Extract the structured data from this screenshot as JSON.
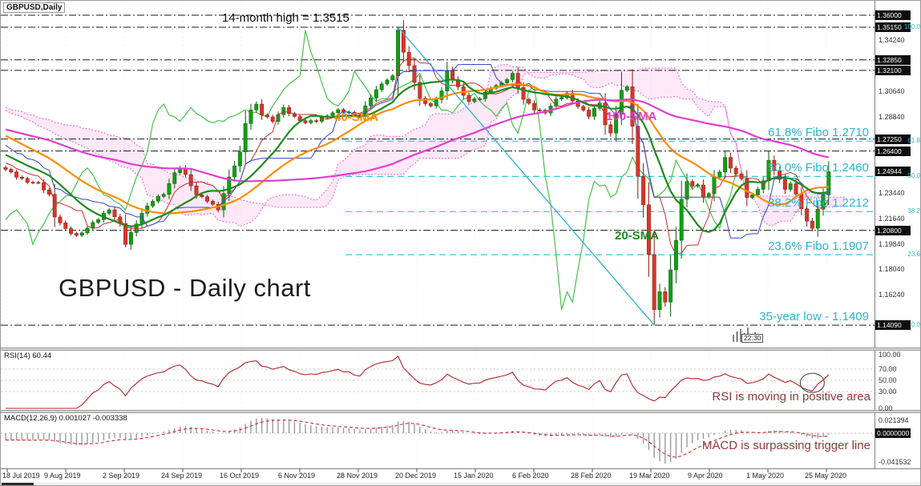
{
  "window": {
    "symbol_label": "GBPUSD,Daily"
  },
  "chart_data": [
    {
      "panel": "price",
      "type": "candlestick",
      "symbol": "GBPUSD",
      "timeframe": "Daily",
      "x_tick_labels": [
        "18 Jul 2019",
        "9 Aug 2019",
        "2 Sep 2019",
        "24 Sep 2019",
        "16 Oct 2019",
        "6 Nov 2019",
        "28 Nov 2019",
        "20 Dec 2019",
        "15 Jan 2020",
        "6 Feb 2020",
        "28 Feb 2020",
        "19 Mar 2020",
        "9 Apr 2020",
        "1 May 2020",
        "25 May 2020"
      ],
      "y_axis": {
        "plain_ticks": [
          "1.34240",
          "1.30640",
          "1.28840",
          "1.23440",
          "1.21640",
          "1.19840",
          "1.18040",
          "1.16240"
        ],
        "badge_ticks": [
          "1.36000",
          "1.35150",
          "1.32850",
          "1.32100",
          "1.27250",
          "1.26400",
          "1.24944",
          "1.20800",
          "1.14090"
        ],
        "current_price": "1.24944"
      },
      "levels_dash_dot": [
        1.36,
        1.3515,
        1.3285,
        1.321,
        1.2725,
        1.264,
        1.208,
        1.1409
      ],
      "fibo_levels": [
        {
          "pct_label": "100.0",
          "price": 1.3515
        },
        {
          "pct_label": "61.8",
          "price": 1.271,
          "line_label": "61.8% Fibo 1.2710"
        },
        {
          "pct_label": "50.0",
          "price": 1.246,
          "line_label": "50.0% Fibo 1.2460"
        },
        {
          "pct_label": "38.2",
          "price": 1.2212,
          "line_label": "38.2% Fibo 1.2212"
        },
        {
          "pct_label": "23.6",
          "price": 1.1907,
          "line_label": "23.6% Fibo 1.1907"
        },
        {
          "pct_label": "0.0",
          "price": 1.1409
        }
      ],
      "overlays": [
        {
          "label": "20-SMA",
          "color": "#1d8a1d",
          "window": 13
        },
        {
          "label": "40-SMA",
          "color": "#ff8c00",
          "window": 26
        },
        {
          "label": "100-SMA",
          "color": "#e23ed0",
          "window": 65
        }
      ],
      "ichimoku": {
        "cloud_color": "#ef5fd0",
        "chikou_color": "#46c24a",
        "tenkan_color": "#c62f2f",
        "kijun_color": "#3246c8"
      },
      "annotations": {
        "high_label": "14-month high = 1.3515",
        "low_label": "35-year low - 1.1409",
        "big_title": "GBPUSD - Daily chart",
        "time_tag": "22:30"
      },
      "trendline": {
        "from_index": 72,
        "from_price": 1.3515,
        "to_index": 119,
        "to_price": 1.1409
      },
      "bar_count": 152,
      "warmup_close_keypoints": [
        [
          -30,
          1.305
        ],
        [
          -22,
          1.295
        ],
        [
          -14,
          1.278
        ],
        [
          -7,
          1.262
        ],
        [
          -1,
          1.253
        ]
      ],
      "close_keypoints": [
        [
          0,
          1.251
        ],
        [
          2,
          1.246
        ],
        [
          4,
          1.2425
        ],
        [
          6,
          1.241
        ],
        [
          8,
          1.233
        ],
        [
          9,
          1.218
        ],
        [
          11,
          1.2085
        ],
        [
          13,
          1.204
        ],
        [
          15,
          1.2095
        ],
        [
          17,
          1.216
        ],
        [
          19,
          1.223
        ],
        [
          21,
          1.212
        ],
        [
          22,
          1.1985
        ],
        [
          23,
          1.206
        ],
        [
          25,
          1.22
        ],
        [
          27,
          1.229
        ],
        [
          29,
          1.234
        ],
        [
          31,
          1.248
        ],
        [
          32,
          1.2525
        ],
        [
          33,
          1.247
        ],
        [
          35,
          1.233
        ],
        [
          37,
          1.229
        ],
        [
          39,
          1.223
        ],
        [
          41,
          1.245
        ],
        [
          43,
          1.263
        ],
        [
          44,
          1.284
        ],
        [
          45,
          1.293
        ],
        [
          46,
          1.2965
        ],
        [
          47,
          1.29
        ],
        [
          49,
          1.2855
        ],
        [
          51,
          1.294
        ],
        [
          53,
          1.288
        ],
        [
          55,
          1.284
        ],
        [
          57,
          1.2855
        ],
        [
          59,
          1.2895
        ],
        [
          61,
          1.2925
        ],
        [
          63,
          1.291
        ],
        [
          65,
          1.2885
        ],
        [
          67,
          1.302
        ],
        [
          69,
          1.312
        ],
        [
          71,
          1.3165
        ],
        [
          72,
          1.35
        ],
        [
          73,
          1.3335
        ],
        [
          74,
          1.325
        ],
        [
          75,
          1.3125
        ],
        [
          76,
          1.3005
        ],
        [
          78,
          1.2955
        ],
        [
          80,
          1.3065
        ],
        [
          81,
          1.32
        ],
        [
          82,
          1.315
        ],
        [
          83,
          1.309
        ],
        [
          85,
          1.299
        ],
        [
          87,
          1.3015
        ],
        [
          89,
          1.309
        ],
        [
          91,
          1.3115
        ],
        [
          93,
          1.3185
        ],
        [
          95,
          1.3005
        ],
        [
          97,
          1.2935
        ],
        [
          99,
          1.2915
        ],
        [
          101,
          1.3
        ],
        [
          103,
          1.3045
        ],
        [
          105,
          1.2955
        ],
        [
          107,
          1.289
        ],
        [
          109,
          1.2985
        ],
        [
          110,
          1.2825
        ],
        [
          111,
          1.276
        ],
        [
          112,
          1.2905
        ],
        [
          113,
          1.3065
        ],
        [
          114,
          1.31
        ],
        [
          115,
          1.2815
        ],
        [
          116,
          1.2455
        ],
        [
          117,
          1.2265
        ],
        [
          118,
          1.1905
        ],
        [
          119,
          1.1525
        ],
        [
          120,
          1.1645
        ],
        [
          121,
          1.1565
        ],
        [
          122,
          1.1805
        ],
        [
          123,
          1.2005
        ],
        [
          124,
          1.2305
        ],
        [
          125,
          1.2425
        ],
        [
          126,
          1.2385
        ],
        [
          127,
          1.2405
        ],
        [
          128,
          1.231
        ],
        [
          129,
          1.2345
        ],
        [
          130,
          1.2455
        ],
        [
          131,
          1.2485
        ],
        [
          132,
          1.26
        ],
        [
          133,
          1.2515
        ],
        [
          134,
          1.2485
        ],
        [
          135,
          1.2445
        ],
        [
          136,
          1.2305
        ],
        [
          137,
          1.2335
        ],
        [
          138,
          1.2365
        ],
        [
          139,
          1.2435
        ],
        [
          140,
          1.2575
        ],
        [
          141,
          1.2495
        ],
        [
          142,
          1.2445
        ],
        [
          143,
          1.2365
        ],
        [
          144,
          1.2415
        ],
        [
          145,
          1.2335
        ],
        [
          146,
          1.2225
        ],
        [
          147,
          1.215
        ],
        [
          148,
          1.209
        ],
        [
          149,
          1.2235
        ],
        [
          150,
          1.233
        ],
        [
          151,
          1.2494
        ]
      ],
      "wick_overrides": [
        [
          22,
          "low",
          1.1959
        ],
        [
          72,
          "high",
          1.3515
        ],
        [
          93,
          "high",
          1.3205
        ],
        [
          113,
          "high",
          1.32
        ],
        [
          119,
          "low",
          1.1409
        ]
      ]
    },
    {
      "panel": "rsi",
      "type": "line",
      "label": "RSI(14) 60.44",
      "indicator": "RSI",
      "period": 14,
      "current_value": 60.44,
      "axis_labels": [
        "100.00",
        "70.00",
        "50.00",
        "30.00",
        "0.00"
      ],
      "axis_values": [
        100,
        70,
        50,
        30,
        0
      ],
      "level_lines": [
        70,
        50,
        30
      ],
      "line_color": "#b22222",
      "note": "RSI is moving in positive area"
    },
    {
      "panel": "macd",
      "type": "bar",
      "label": "MACD(12,26,9) 0.001027 -0.003338",
      "indicator": "MACD",
      "params": "12,26,9",
      "macd_value": "0.001027",
      "signal_value": "-0.003338",
      "axis_max_label": "0.021394",
      "axis_zero_label": "0.0000000",
      "axis_min_label": "-0.041532",
      "histogram_color": "#9a9a9a",
      "signal_color": "#cc2a2a",
      "note": "MACD is surpassing trigger line"
    }
  ]
}
